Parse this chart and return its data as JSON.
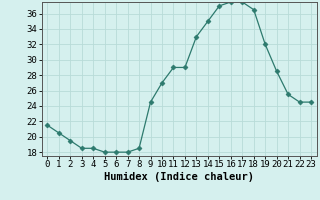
{
  "x": [
    0,
    1,
    2,
    3,
    4,
    5,
    6,
    7,
    8,
    9,
    10,
    11,
    12,
    13,
    14,
    15,
    16,
    17,
    18,
    19,
    20,
    21,
    22,
    23
  ],
  "y": [
    21.5,
    20.5,
    19.5,
    18.5,
    18.5,
    18.0,
    18.0,
    18.0,
    18.5,
    24.5,
    27.0,
    29.0,
    29.0,
    33.0,
    35.0,
    37.0,
    37.5,
    37.5,
    36.5,
    32.0,
    28.5,
    25.5,
    24.5,
    24.5
  ],
  "xlabel": "Humidex (Indice chaleur)",
  "xlim_min": -0.5,
  "xlim_max": 23.5,
  "ylim_min": 17.5,
  "ylim_max": 37.5,
  "yticks": [
    18,
    20,
    22,
    24,
    26,
    28,
    30,
    32,
    34,
    36
  ],
  "xticks": [
    0,
    1,
    2,
    3,
    4,
    5,
    6,
    7,
    8,
    9,
    10,
    11,
    12,
    13,
    14,
    15,
    16,
    17,
    18,
    19,
    20,
    21,
    22,
    23
  ],
  "line_color": "#2d7a6e",
  "marker": "D",
  "marker_size": 2.5,
  "bg_color": "#d5f0ee",
  "grid_color": "#b8dbd8",
  "axis_fontsize": 7.5,
  "tick_fontsize": 6.5
}
